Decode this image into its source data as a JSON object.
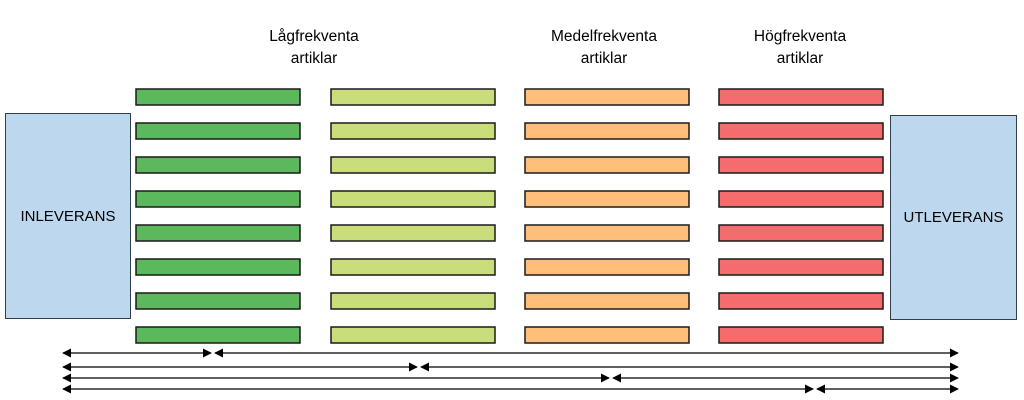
{
  "zones": [
    {
      "id": "low",
      "line1": "Lågfrekventa",
      "line2": "artiklar",
      "color": "#5cb85c"
    },
    {
      "id": "lowmid",
      "line1": "",
      "line2": "",
      "color": "#c9dd7a"
    },
    {
      "id": "mid",
      "line1": "Medelfrekventa",
      "line2": "artiklar",
      "color": "#ffbe7a"
    },
    {
      "id": "high",
      "line1": "Högfrekventa",
      "line2": "artiklar",
      "color": "#f46d6d"
    }
  ],
  "rack_rows": 8,
  "dock_in": {
    "label": "INLEVERANS",
    "color": "#bdd7ee"
  },
  "dock_out": {
    "label": "UTLEVERANS",
    "color": "#bdd7ee"
  },
  "distance_arrows": 4
}
